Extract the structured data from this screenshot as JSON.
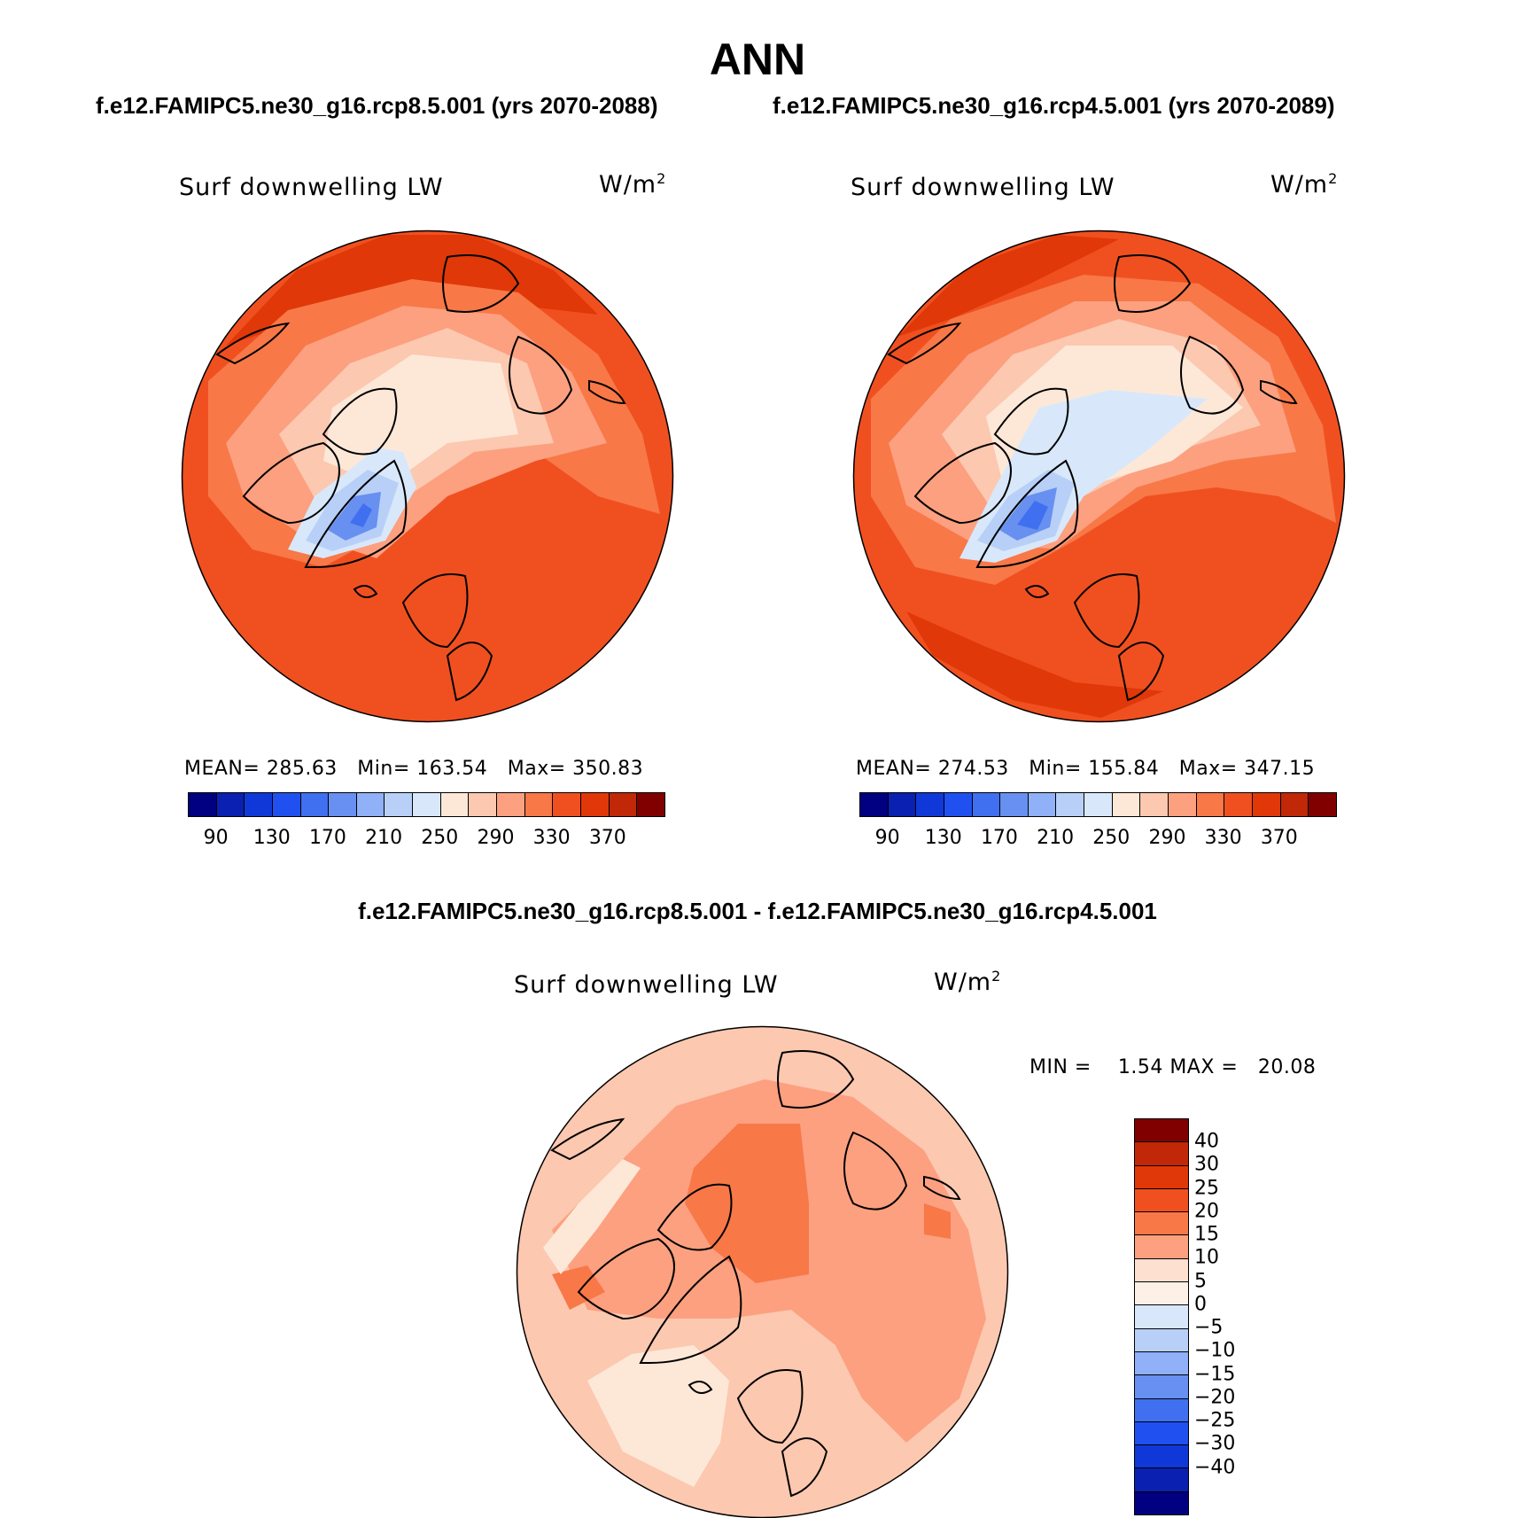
{
  "figure": {
    "title": "ANN",
    "panel_a_title": "f.e12.FAMIPC5.ne30_g16.rcp8.5.001 (yrs 2070-2088)",
    "panel_b_title": "f.e12.FAMIPC5.ne30_g16.rcp4.5.001 (yrs 2070-2089)",
    "diff_title": "f.e12.FAMIPC5.ne30_g16.rcp8.5.001 - f.e12.FAMIPC5.ne30_g16.rcp4.5.001"
  },
  "chart_data": [
    {
      "type": "heatmap",
      "projection": "north-polar-stereographic",
      "variable": "Surf downwelling LW",
      "units": "W/m",
      "units_exp": "2",
      "stats": {
        "mean": "285.63",
        "min": "163.54",
        "max": "350.83"
      },
      "stats_labels": {
        "mean": "MEAN=",
        "min": "Min=",
        "max": "Max="
      },
      "colorbar": {
        "colors": [
          "#000080",
          "#0a20b0",
          "#1038d8",
          "#2050f0",
          "#4070f0",
          "#6890f0",
          "#90b0f8",
          "#b8d0f8",
          "#d8e8fa",
          "#fde8d8",
          "#fcc8b0",
          "#fca080",
          "#f87848",
          "#f05020",
          "#e03808",
          "#c02808",
          "#800000"
        ],
        "tick_labels": [
          "90",
          "130",
          "170",
          "210",
          "250",
          "290",
          "330",
          "370"
        ]
      },
      "contour_levels": [
        90,
        110,
        130,
        150,
        170,
        190,
        210,
        230,
        250,
        270,
        290,
        310,
        330,
        350,
        370
      ],
      "range": [
        155,
        351
      ]
    },
    {
      "type": "heatmap",
      "projection": "north-polar-stereographic",
      "variable": "Surf downwelling LW",
      "units": "W/m",
      "units_exp": "2",
      "stats": {
        "mean": "274.53",
        "min": "155.84",
        "max": "347.15"
      },
      "stats_labels": {
        "mean": "MEAN=",
        "min": "Min=",
        "max": "Max="
      },
      "colorbar": {
        "colors": [
          "#000080",
          "#0a20b0",
          "#1038d8",
          "#2050f0",
          "#4070f0",
          "#6890f0",
          "#90b0f8",
          "#b8d0f8",
          "#d8e8fa",
          "#fde8d8",
          "#fcc8b0",
          "#fca080",
          "#f87848",
          "#f05020",
          "#e03808",
          "#c02808",
          "#800000"
        ],
        "tick_labels": [
          "90",
          "130",
          "170",
          "210",
          "250",
          "290",
          "330",
          "370"
        ]
      },
      "contour_levels": [
        90,
        110,
        130,
        150,
        170,
        190,
        210,
        230,
        250,
        270,
        290,
        310,
        330,
        350,
        370
      ],
      "range": [
        155,
        348
      ]
    },
    {
      "type": "heatmap",
      "projection": "north-polar-stereographic",
      "variable": "Surf downwelling LW",
      "units": "W/m",
      "units_exp": "2",
      "stats": {
        "min": "1.54",
        "max": "20.08"
      },
      "stats_labels": {
        "min": "MIN =",
        "max": "MAX ="
      },
      "colorbar": {
        "colors": [
          "#800000",
          "#c02808",
          "#e03808",
          "#f05020",
          "#f87848",
          "#fca080",
          "#fde0d0",
          "#fdf0e6",
          "#d8e8fa",
          "#b8d0f8",
          "#90b0f8",
          "#6890f0",
          "#4070f0",
          "#2050f0",
          "#1038d8",
          "#0a20b0",
          "#000080"
        ],
        "tick_labels": [
          "40",
          "30",
          "25",
          "20",
          "15",
          "10",
          "5",
          "0",
          "−5",
          "−10",
          "−15",
          "−20",
          "−25",
          "−30",
          "−40"
        ]
      },
      "range": [
        1.54,
        20.08
      ]
    }
  ]
}
